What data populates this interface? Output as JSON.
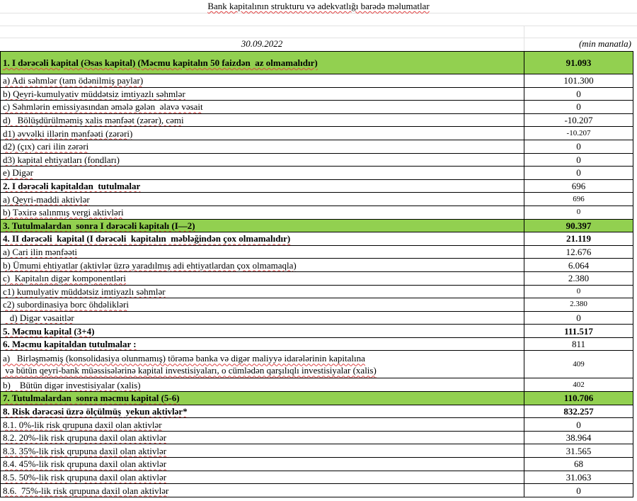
{
  "title": "Bank kapitalının strukturu və adekvatlığı barədə məlumatlar",
  "date": "30.09.2022",
  "unit": "(min manatla)",
  "colors": {
    "highlight": "#92d050"
  },
  "rows": [
    {
      "label": "1. I dərəcəli kapital (Əsas kapital) (Məcmu kapitalın 50 faizdən  az olmamalıdır)",
      "value": "91.093",
      "style": "green head bold"
    },
    {
      "label": "a) Adi səhmlər (tam ödənilmiş paylar)",
      "value": "101.300",
      "style": ""
    },
    {
      "label": "b) Qeyri-kumulyativ müddətsiz imtiyazlı səhmlər",
      "value": "0",
      "style": ""
    },
    {
      "label": "c) Səhmlərin emissiyasından əmələ gələn  əlavə vəsait",
      "value": "0",
      "style": ""
    },
    {
      "label": "d)   Bölüşdürülməmiş xalis mənfəət (zərər), cəmi",
      "value": "-10.207",
      "style": ""
    },
    {
      "label": "d1) əvvəlki illərin mənfəəti (zərəri)",
      "value": "-10.207",
      "style": "small"
    },
    {
      "label": "d2) (çıx) cari ilin zərəri",
      "value": "0",
      "style": ""
    },
    {
      "label": "d3) kapital ehtiyatları (fondları)",
      "value": "0",
      "style": ""
    },
    {
      "label": "e) Digər",
      "value": "0",
      "style": ""
    },
    {
      "label": "2. I dərəcəli kapitaldan  tutulmalar",
      "value": "696",
      "style": "boldlabel"
    },
    {
      "label": "a) Qeyri-maddi aktivlər",
      "value": "696",
      "style": "small"
    },
    {
      "label": "b) Təxirə salınmış vergi aktivləri",
      "value": "0",
      "style": "small"
    },
    {
      "label": "3. Tutulmalardan  sonra I dərəcəli kapitalı (I—2)",
      "value": "90.397",
      "style": "green bold"
    },
    {
      "label": "4. II dərəcəli  kapital (I dərəcəli  kapitalın  məbləğindən çox olmamalıdır)",
      "value": "21.119",
      "style": "bold"
    },
    {
      "label": "a) Cari ilin mənfəəti",
      "value": "12.676",
      "style": ""
    },
    {
      "label": "b) Ümumi ehtiyatlar (aktivlər üzrə yaradılmış adi ehtiyatlardan çox olmamaqla)",
      "value": "6.064",
      "style": ""
    },
    {
      "label": "c)  Kapitalın digər komponentləri",
      "value": "2.380",
      "style": ""
    },
    {
      "label": "c1) kumulyativ müddətsiz imtiyazlı səhmlər",
      "value": "0",
      "style": "small"
    },
    {
      "label": "c2) subordinasiya borc öhdəlikləri",
      "value": "2.380",
      "style": "small"
    },
    {
      "label": "   d) Digər vəsaitlər",
      "value": "0",
      "style": ""
    },
    {
      "label": "5. Məcmu kapital (3+4)",
      "value": "111.517",
      "style": "bold"
    },
    {
      "label": "6. Məcmu kapitaldan tutulmalar :",
      "value": "811",
      "style": "boldlabel"
    },
    {
      "label": "a)   Birləşməmiş (konsolidasiya olunmamış) törəmə banka və digər maliyyə idarələrinin kapitalına\n və bütün qeyri-bank müəssisələrinə kapital investisiyaları, o cümlədən qarşılıqlı investisiyalar (xalis)",
      "value": "409",
      "style": "two small"
    },
    {
      "label": "b)    Bütün digər investisiyalar (xalis)",
      "value": "402",
      "style": "small"
    },
    {
      "label": "7. Tutulmalardan  sonra məcmu kapital (5-6)",
      "value": "110.706",
      "style": "green bold"
    },
    {
      "label": "8. Risk dərəcəsi üzrə ölçülmüş  yekun aktivlər*",
      "value": "832.257",
      "style": "bold"
    },
    {
      "label": "8.1. 0%-lik risk qrupuna daxil olan aktivlər",
      "value": "0",
      "style": ""
    },
    {
      "label": "8.2. 20%-lik risk qrupuna daxil olan aktivlər",
      "value": "38.964",
      "style": ""
    },
    {
      "label": "8.3. 35%-lik risk qrupuna daxil olan aktivlər",
      "value": "31.565",
      "style": ""
    },
    {
      "label": "8.4. 45%-lik risk qrupuna daxil olan aktivlər",
      "value": "68",
      "style": ""
    },
    {
      "label": "8.5. 50%-lik risk qrupuna daxil olan aktivlər",
      "value": "31.063",
      "style": ""
    },
    {
      "label": "8.6.  75%-lik risk qrupuna daxil olan aktivlər",
      "value": "0",
      "style": ""
    }
  ]
}
